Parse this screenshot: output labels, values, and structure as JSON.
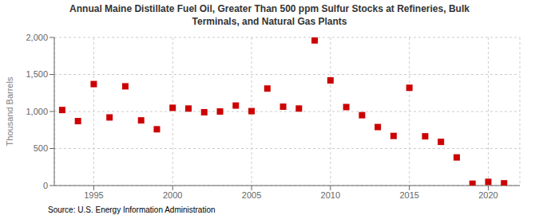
{
  "chart_data": {
    "type": "scatter",
    "title": "Annual Maine Distillate Fuel Oil, Greater Than 500 ppm Sulfur Stocks at Refineries, Bulk\nTerminals, and Natural Gas Plants",
    "y_label": "Thousand Barrels",
    "annotations": [
      "Source: U.S. Energy Information Administration"
    ],
    "x": [
      1993,
      1994,
      1995,
      1996,
      1997,
      1998,
      1999,
      2000,
      2001,
      2002,
      2003,
      2004,
      2005,
      2006,
      2007,
      2008,
      2009,
      2010,
      2011,
      2012,
      2013,
      2014,
      2015,
      2016,
      2017,
      2018,
      2019,
      2020,
      2021
    ],
    "values": [
      1020,
      870,
      1370,
      920,
      1340,
      880,
      760,
      1050,
      1040,
      990,
      1000,
      1080,
      1005,
      1310,
      1065,
      1040,
      1960,
      1420,
      1060,
      950,
      790,
      670,
      1320,
      665,
      590,
      380,
      25,
      50,
      30
    ],
    "color": "#cc0000",
    "marker": "square",
    "xlim": [
      1992.5,
      2022
    ],
    "xticks": [
      1995,
      2000,
      2005,
      2010,
      2015,
      2020
    ],
    "ylim": [
      0,
      2000
    ],
    "yticks": [
      0,
      500,
      {
        "value": 1000,
        "label": "1,000"
      },
      {
        "value": 1500,
        "label": "1,500"
      },
      {
        "value": 2000,
        "label": "2,000"
      }
    ],
    "grid": true
  }
}
